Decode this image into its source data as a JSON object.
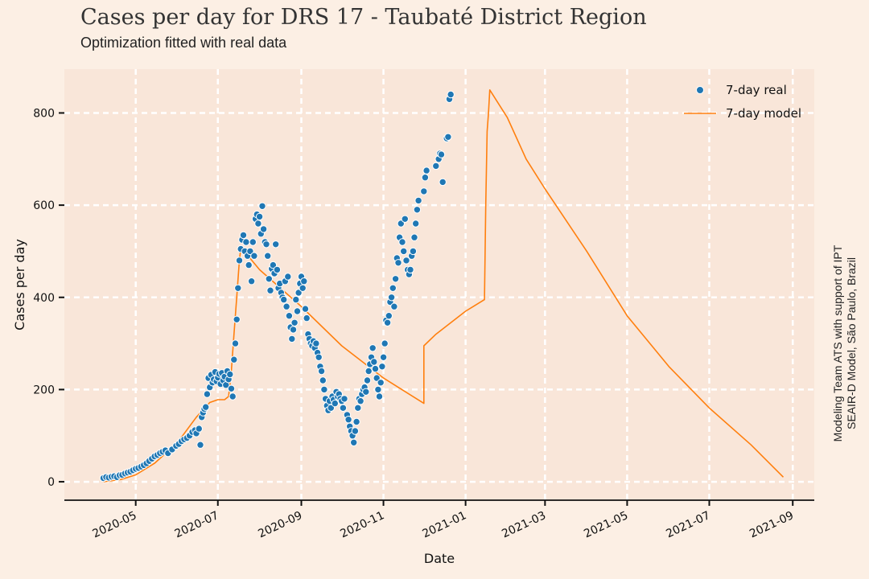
{
  "header": {
    "title": "Cases per day for DRS 17 - Taubaté District Region",
    "subtitle": "Optimization fitted with real data"
  },
  "side_note": {
    "line1": "Modeling Team ATS with support of IPT",
    "line2": "SEAIR-D Model, São Paulo, Brazil"
  },
  "colors": {
    "background": "#fcefe4",
    "plot_background": "#f9e6d9",
    "real": "#1f77b4",
    "model": "#ff7f0e",
    "grid": "#ffffff"
  },
  "chart_data": {
    "type": "scatter",
    "title": "Cases per day for DRS 17 - Taubaté District Region",
    "subtitle": "Optimization fitted with real data",
    "xlabel": "Date",
    "ylabel": "Cases per day",
    "x_type": "date",
    "xlim": [
      "2020-03-09",
      "2021-09-17"
    ],
    "ylim": [
      -40,
      895
    ],
    "x_ticks": [
      "2020-05",
      "2020-07",
      "2020-09",
      "2020-11",
      "2021-01",
      "2021-03",
      "2021-05",
      "2021-07",
      "2021-09"
    ],
    "y_ticks": [
      0,
      200,
      400,
      600,
      800
    ],
    "grid": true,
    "legend": {
      "position": "top-right",
      "entries": [
        "7-day real",
        "7-day model"
      ]
    },
    "series": [
      {
        "name": "7-day real",
        "kind": "scatter",
        "points": [
          [
            "2020-04-07",
            8
          ],
          [
            "2020-04-09",
            10
          ],
          [
            "2020-04-11",
            9
          ],
          [
            "2020-04-13",
            11
          ],
          [
            "2020-04-15",
            12
          ],
          [
            "2020-04-17",
            10
          ],
          [
            "2020-04-19",
            14
          ],
          [
            "2020-04-21",
            15
          ],
          [
            "2020-04-23",
            18
          ],
          [
            "2020-04-25",
            20
          ],
          [
            "2020-04-27",
            22
          ],
          [
            "2020-04-29",
            25
          ],
          [
            "2020-05-01",
            28
          ],
          [
            "2020-05-03",
            30
          ],
          [
            "2020-05-05",
            33
          ],
          [
            "2020-05-07",
            36
          ],
          [
            "2020-05-09",
            40
          ],
          [
            "2020-05-11",
            45
          ],
          [
            "2020-05-13",
            50
          ],
          [
            "2020-05-15",
            55
          ],
          [
            "2020-05-17",
            58
          ],
          [
            "2020-05-19",
            62
          ],
          [
            "2020-05-21",
            65
          ],
          [
            "2020-05-23",
            68
          ],
          [
            "2020-05-25",
            62
          ],
          [
            "2020-05-28",
            70
          ],
          [
            "2020-05-31",
            78
          ],
          [
            "2020-06-02",
            82
          ],
          [
            "2020-06-04",
            88
          ],
          [
            "2020-06-06",
            92
          ],
          [
            "2020-06-08",
            95
          ],
          [
            "2020-06-10",
            100
          ],
          [
            "2020-06-12",
            108
          ],
          [
            "2020-06-14",
            112
          ],
          [
            "2020-06-15",
            105
          ],
          [
            "2020-06-17",
            115
          ],
          [
            "2020-06-18",
            80
          ],
          [
            "2020-06-19",
            140
          ],
          [
            "2020-06-20",
            150
          ],
          [
            "2020-06-21",
            158
          ],
          [
            "2020-06-22",
            162
          ],
          [
            "2020-06-23",
            190
          ],
          [
            "2020-06-24",
            225
          ],
          [
            "2020-06-25",
            205
          ],
          [
            "2020-06-26",
            232
          ],
          [
            "2020-06-27",
            215
          ],
          [
            "2020-06-28",
            222
          ],
          [
            "2020-06-29",
            238
          ],
          [
            "2020-06-30",
            218
          ],
          [
            "2020-07-01",
            226
          ],
          [
            "2020-07-02",
            234
          ],
          [
            "2020-07-03",
            212
          ],
          [
            "2020-07-04",
            236
          ],
          [
            "2020-07-05",
            220
          ],
          [
            "2020-07-06",
            228
          ],
          [
            "2020-07-07",
            210
          ],
          [
            "2020-07-08",
            240
          ],
          [
            "2020-07-09",
            222
          ],
          [
            "2020-07-10",
            233
          ],
          [
            "2020-07-11",
            202
          ],
          [
            "2020-07-12",
            185
          ],
          [
            "2020-07-13",
            265
          ],
          [
            "2020-07-14",
            300
          ],
          [
            "2020-07-15",
            352
          ],
          [
            "2020-07-16",
            420
          ],
          [
            "2020-07-17",
            480
          ],
          [
            "2020-07-18",
            505
          ],
          [
            "2020-07-19",
            525
          ],
          [
            "2020-07-20",
            535
          ],
          [
            "2020-07-21",
            500
          ],
          [
            "2020-07-22",
            520
          ],
          [
            "2020-07-23",
            490
          ],
          [
            "2020-07-24",
            470
          ],
          [
            "2020-07-25",
            500
          ],
          [
            "2020-07-26",
            435
          ],
          [
            "2020-07-27",
            520
          ],
          [
            "2020-07-28",
            490
          ],
          [
            "2020-07-29",
            570
          ],
          [
            "2020-07-30",
            580
          ],
          [
            "2020-07-31",
            560
          ],
          [
            "2020-08-01",
            575
          ],
          [
            "2020-08-02",
            538
          ],
          [
            "2020-08-03",
            598
          ],
          [
            "2020-08-04",
            548
          ],
          [
            "2020-08-05",
            520
          ],
          [
            "2020-08-06",
            515
          ],
          [
            "2020-08-07",
            490
          ],
          [
            "2020-08-08",
            440
          ],
          [
            "2020-08-09",
            415
          ],
          [
            "2020-08-10",
            462
          ],
          [
            "2020-08-11",
            470
          ],
          [
            "2020-08-12",
            452
          ],
          [
            "2020-08-13",
            515
          ],
          [
            "2020-08-14",
            460
          ],
          [
            "2020-08-15",
            420
          ],
          [
            "2020-08-16",
            430
          ],
          [
            "2020-08-17",
            410
          ],
          [
            "2020-08-18",
            400
          ],
          [
            "2020-08-19",
            395
          ],
          [
            "2020-08-20",
            435
          ],
          [
            "2020-08-21",
            380
          ],
          [
            "2020-08-22",
            445
          ],
          [
            "2020-08-23",
            360
          ],
          [
            "2020-08-24",
            335
          ],
          [
            "2020-08-25",
            310
          ],
          [
            "2020-08-26",
            330
          ],
          [
            "2020-08-27",
            345
          ],
          [
            "2020-08-28",
            395
          ],
          [
            "2020-08-29",
            370
          ],
          [
            "2020-08-30",
            410
          ],
          [
            "2020-08-31",
            430
          ],
          [
            "2020-09-01",
            445
          ],
          [
            "2020-09-02",
            420
          ],
          [
            "2020-09-03",
            435
          ],
          [
            "2020-09-04",
            375
          ],
          [
            "2020-09-05",
            355
          ],
          [
            "2020-09-06",
            320
          ],
          [
            "2020-09-07",
            310
          ],
          [
            "2020-09-08",
            300
          ],
          [
            "2020-09-09",
            295
          ],
          [
            "2020-09-10",
            305
          ],
          [
            "2020-09-11",
            290
          ],
          [
            "2020-09-12",
            300
          ],
          [
            "2020-09-13",
            280
          ],
          [
            "2020-09-14",
            270
          ],
          [
            "2020-09-15",
            250
          ],
          [
            "2020-09-16",
            240
          ],
          [
            "2020-09-17",
            220
          ],
          [
            "2020-09-18",
            200
          ],
          [
            "2020-09-19",
            180
          ],
          [
            "2020-09-20",
            165
          ],
          [
            "2020-09-21",
            155
          ],
          [
            "2020-09-22",
            175
          ],
          [
            "2020-09-23",
            160
          ],
          [
            "2020-09-24",
            185
          ],
          [
            "2020-09-25",
            178
          ],
          [
            "2020-09-26",
            170
          ],
          [
            "2020-09-27",
            195
          ],
          [
            "2020-09-28",
            185
          ],
          [
            "2020-09-29",
            190
          ],
          [
            "2020-09-30",
            180
          ],
          [
            "2020-10-01",
            175
          ],
          [
            "2020-10-02",
            160
          ],
          [
            "2020-10-03",
            180
          ],
          [
            "2020-10-05",
            145
          ],
          [
            "2020-10-06",
            135
          ],
          [
            "2020-10-07",
            120
          ],
          [
            "2020-10-08",
            110
          ],
          [
            "2020-10-09",
            100
          ],
          [
            "2020-10-10",
            85
          ],
          [
            "2020-10-11",
            110
          ],
          [
            "2020-10-12",
            130
          ],
          [
            "2020-10-13",
            160
          ],
          [
            "2020-10-14",
            180
          ],
          [
            "2020-10-15",
            175
          ],
          [
            "2020-10-16",
            190
          ],
          [
            "2020-10-17",
            200
          ],
          [
            "2020-10-18",
            205
          ],
          [
            "2020-10-19",
            195
          ],
          [
            "2020-10-20",
            220
          ],
          [
            "2020-10-21",
            240
          ],
          [
            "2020-10-22",
            255
          ],
          [
            "2020-10-23",
            270
          ],
          [
            "2020-10-24",
            290
          ],
          [
            "2020-10-25",
            260
          ],
          [
            "2020-10-26",
            245
          ],
          [
            "2020-10-27",
            225
          ],
          [
            "2020-10-28",
            200
          ],
          [
            "2020-10-29",
            185
          ],
          [
            "2020-10-30",
            215
          ],
          [
            "2020-10-31",
            250
          ],
          [
            "2020-11-01",
            270
          ],
          [
            "2020-11-02",
            300
          ],
          [
            "2020-11-03",
            350
          ],
          [
            "2020-11-04",
            345
          ],
          [
            "2020-11-05",
            360
          ],
          [
            "2020-11-06",
            390
          ],
          [
            "2020-11-07",
            400
          ],
          [
            "2020-11-08",
            420
          ],
          [
            "2020-11-09",
            380
          ],
          [
            "2020-11-10",
            440
          ],
          [
            "2020-11-11",
            485
          ],
          [
            "2020-11-12",
            475
          ],
          [
            "2020-11-13",
            530
          ],
          [
            "2020-11-14",
            560
          ],
          [
            "2020-11-15",
            520
          ],
          [
            "2020-11-16",
            500
          ],
          [
            "2020-11-17",
            570
          ],
          [
            "2020-11-18",
            480
          ],
          [
            "2020-11-19",
            460
          ],
          [
            "2020-11-20",
            450
          ],
          [
            "2020-11-21",
            460
          ],
          [
            "2020-11-22",
            490
          ],
          [
            "2020-11-23",
            500
          ],
          [
            "2020-11-24",
            530
          ],
          [
            "2020-11-25",
            560
          ],
          [
            "2020-11-26",
            590
          ],
          [
            "2020-11-27",
            610
          ],
          [
            "2020-12-01",
            630
          ],
          [
            "2020-12-02",
            660
          ],
          [
            "2020-12-03",
            675
          ],
          [
            "2020-12-10",
            685
          ],
          [
            "2020-12-12",
            700
          ],
          [
            "2020-12-13",
            712
          ],
          [
            "2020-12-14",
            710
          ],
          [
            "2020-12-15",
            650
          ],
          [
            "2020-12-18",
            745
          ],
          [
            "2020-12-19",
            748
          ],
          [
            "2020-12-20",
            830
          ],
          [
            "2020-12-21",
            840
          ]
        ]
      },
      {
        "name": "7-day model",
        "kind": "line",
        "points": [
          [
            "2020-04-07",
            0
          ],
          [
            "2020-04-20",
            5
          ],
          [
            "2020-05-01",
            15
          ],
          [
            "2020-05-15",
            40
          ],
          [
            "2020-06-01",
            85
          ],
          [
            "2020-06-15",
            140
          ],
          [
            "2020-06-25",
            172
          ],
          [
            "2020-07-01",
            178
          ],
          [
            "2020-07-06",
            178
          ],
          [
            "2020-07-09",
            185
          ],
          [
            "2020-07-11",
            240
          ],
          [
            "2020-07-13",
            320
          ],
          [
            "2020-07-15",
            400
          ],
          [
            "2020-07-17",
            480
          ],
          [
            "2020-07-18",
            505
          ],
          [
            "2020-07-22",
            495
          ],
          [
            "2020-08-01",
            460
          ],
          [
            "2020-09-01",
            380
          ],
          [
            "2020-10-01",
            295
          ],
          [
            "2020-11-01",
            225
          ],
          [
            "2020-12-01",
            170
          ],
          [
            "2020-12-01",
            295
          ],
          [
            "2020-12-10",
            320
          ],
          [
            "2021-01-01",
            370
          ],
          [
            "2021-01-15",
            395
          ],
          [
            "2021-01-16",
            600
          ],
          [
            "2021-01-17",
            760
          ],
          [
            "2021-01-18",
            800
          ],
          [
            "2021-01-19",
            850
          ],
          [
            "2021-02-01",
            790
          ],
          [
            "2021-02-15",
            700
          ],
          [
            "2021-03-01",
            635
          ],
          [
            "2021-04-01",
            500
          ],
          [
            "2021-05-01",
            360
          ],
          [
            "2021-06-01",
            250
          ],
          [
            "2021-07-01",
            160
          ],
          [
            "2021-08-01",
            80
          ],
          [
            "2021-08-25",
            10
          ]
        ]
      }
    ]
  }
}
